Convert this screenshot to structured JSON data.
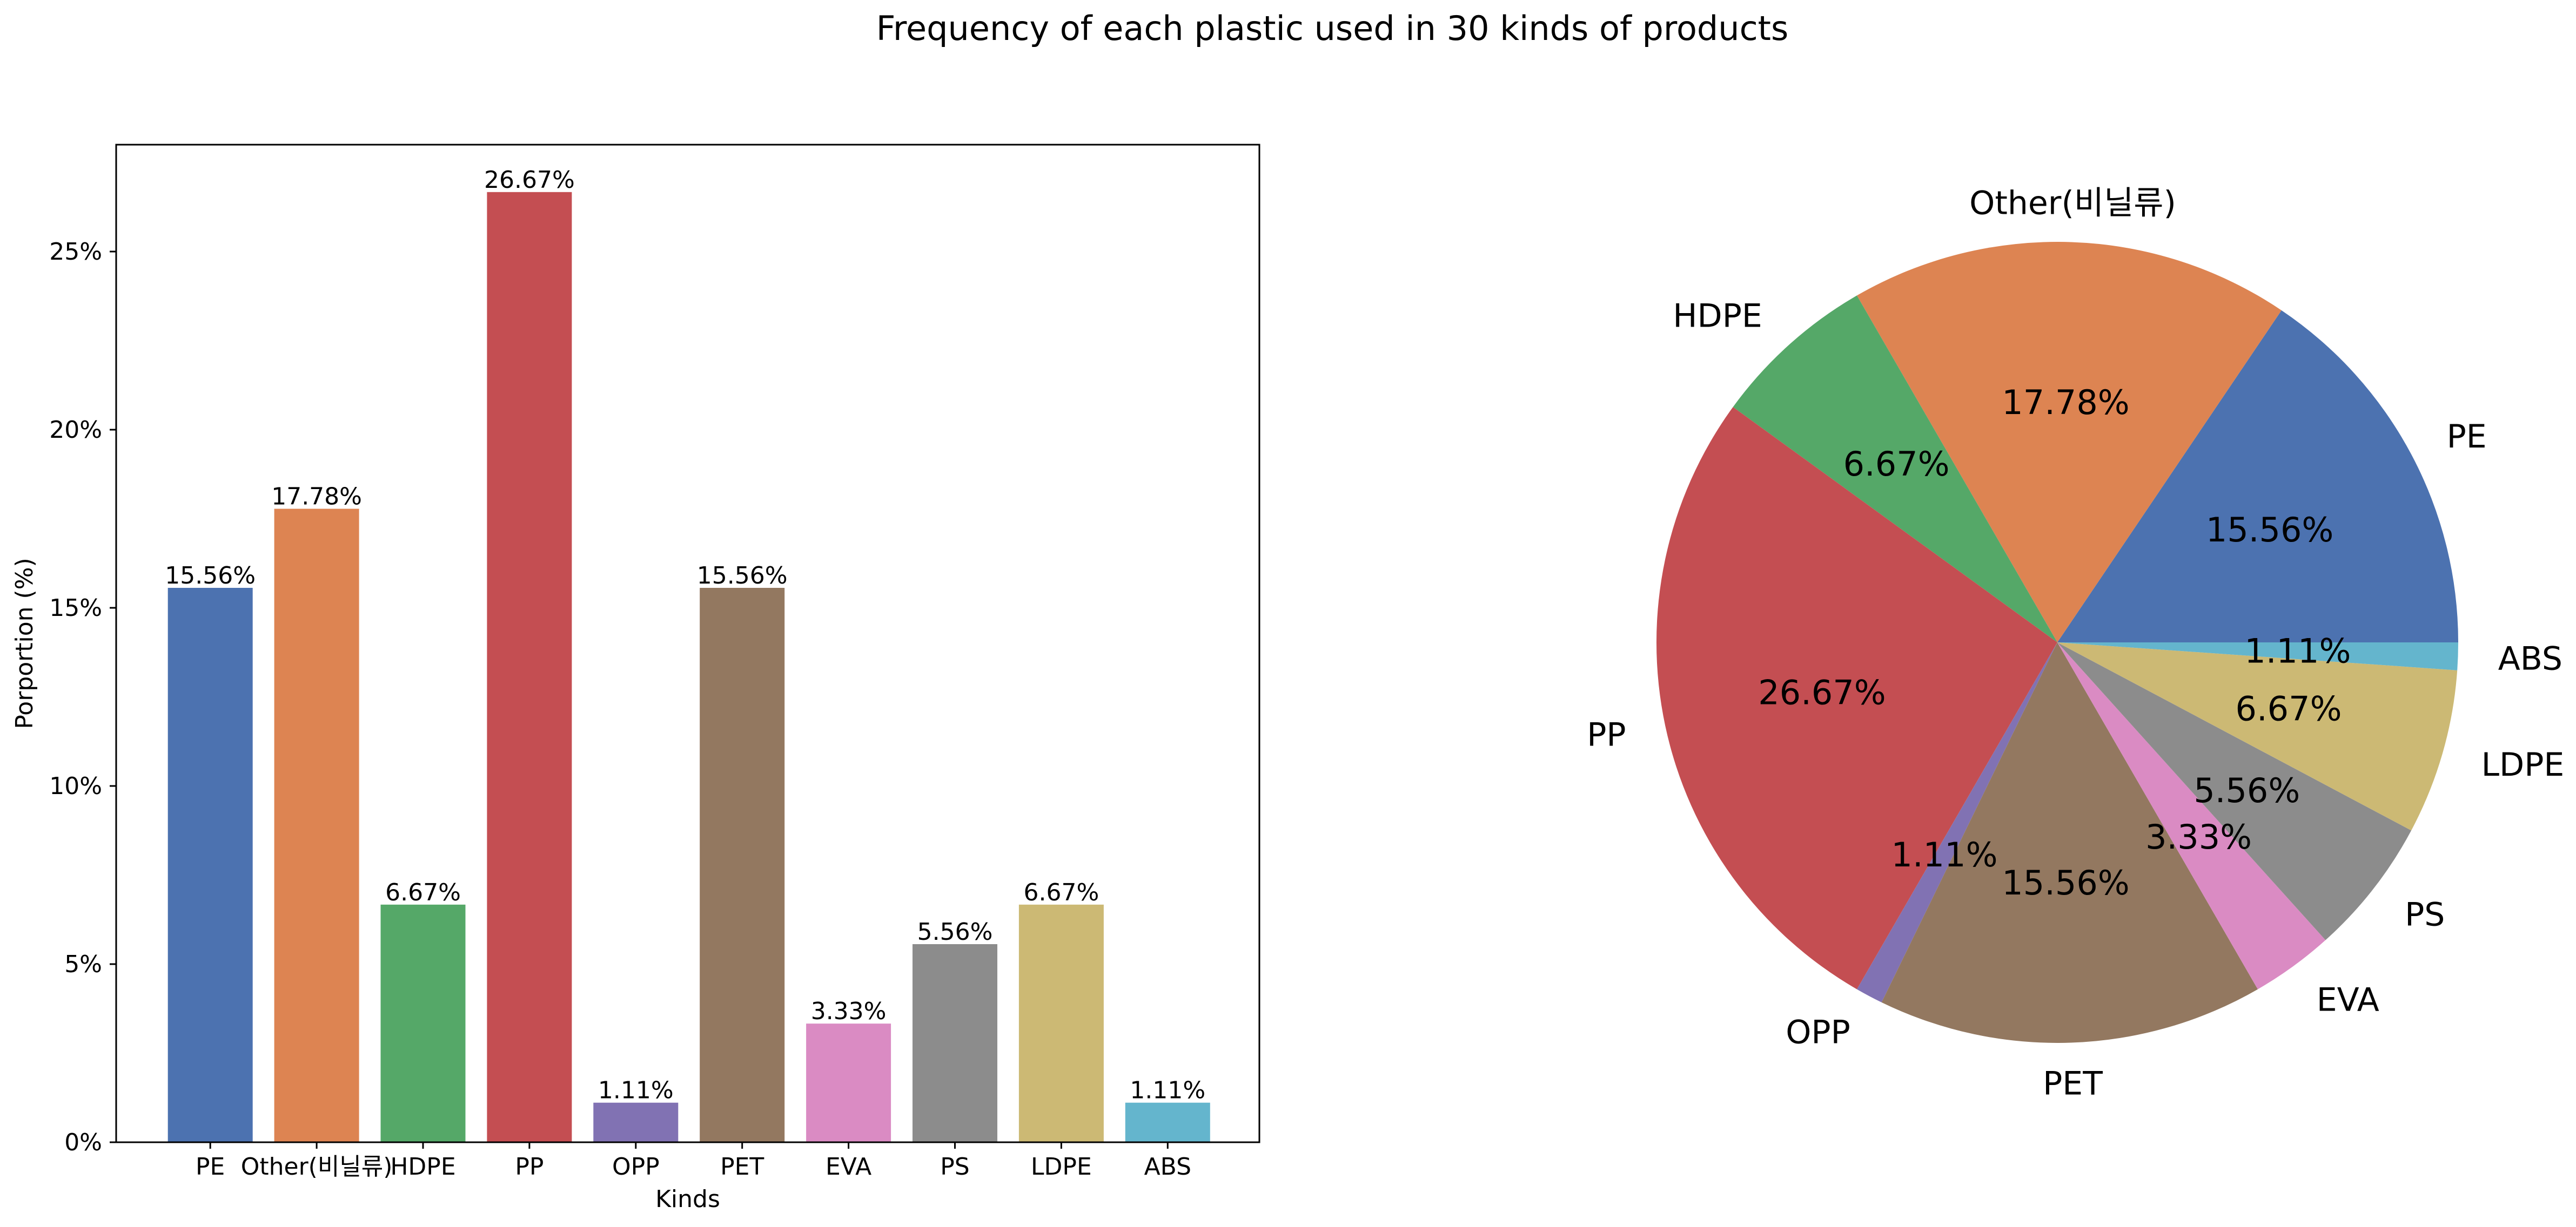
{
  "figure": {
    "title": "Frequency of each plastic used in 30 kinds of products"
  },
  "chart_data": [
    {
      "type": "bar",
      "title": "",
      "xlabel": "Kinds",
      "ylabel": "Porportion (%)",
      "categories": [
        "PE",
        "Other(비닐류)",
        "HDPE",
        "PP",
        "OPP",
        "PET",
        "EVA",
        "PS",
        "LDPE",
        "ABS"
      ],
      "values": [
        15.56,
        17.78,
        6.67,
        26.67,
        1.11,
        15.56,
        3.33,
        5.56,
        6.67,
        1.11
      ],
      "value_labels": [
        "15.56%",
        "17.78%",
        "6.67%",
        "26.67%",
        "1.11%",
        "15.56%",
        "3.33%",
        "5.56%",
        "6.67%",
        "1.11%"
      ],
      "colors": [
        "#4c72b0",
        "#dd8452",
        "#55a868",
        "#c44e52",
        "#8172b3",
        "#937860",
        "#da8bc3",
        "#8c8c8c",
        "#ccb974",
        "#64b5cd"
      ],
      "ylim": [
        0,
        28
      ],
      "yticks": [
        0,
        5,
        10,
        15,
        20,
        25
      ],
      "ytick_labels": [
        "0%",
        "5%",
        "10%",
        "15%",
        "20%",
        "25%"
      ],
      "grid": false
    },
    {
      "type": "pie",
      "title": "",
      "categories": [
        "PE",
        "Other(비닐류)",
        "HDPE",
        "PP",
        "OPP",
        "PET",
        "EVA",
        "PS",
        "LDPE",
        "ABS"
      ],
      "values": [
        15.56,
        17.78,
        6.67,
        26.67,
        1.11,
        15.56,
        3.33,
        5.56,
        6.67,
        1.11
      ],
      "value_labels": [
        "15.56%",
        "17.78%",
        "6.67%",
        "26.67%",
        "1.11%",
        "15.56%",
        "3.33%",
        "5.56%",
        "6.67%",
        "1.11%"
      ],
      "colors": [
        "#4c72b0",
        "#dd8452",
        "#55a868",
        "#c44e52",
        "#8172b3",
        "#937860",
        "#da8bc3",
        "#8c8c8c",
        "#ccb974",
        "#64b5cd"
      ],
      "start_angle_deg": 0,
      "direction": "counterclockwise"
    }
  ]
}
